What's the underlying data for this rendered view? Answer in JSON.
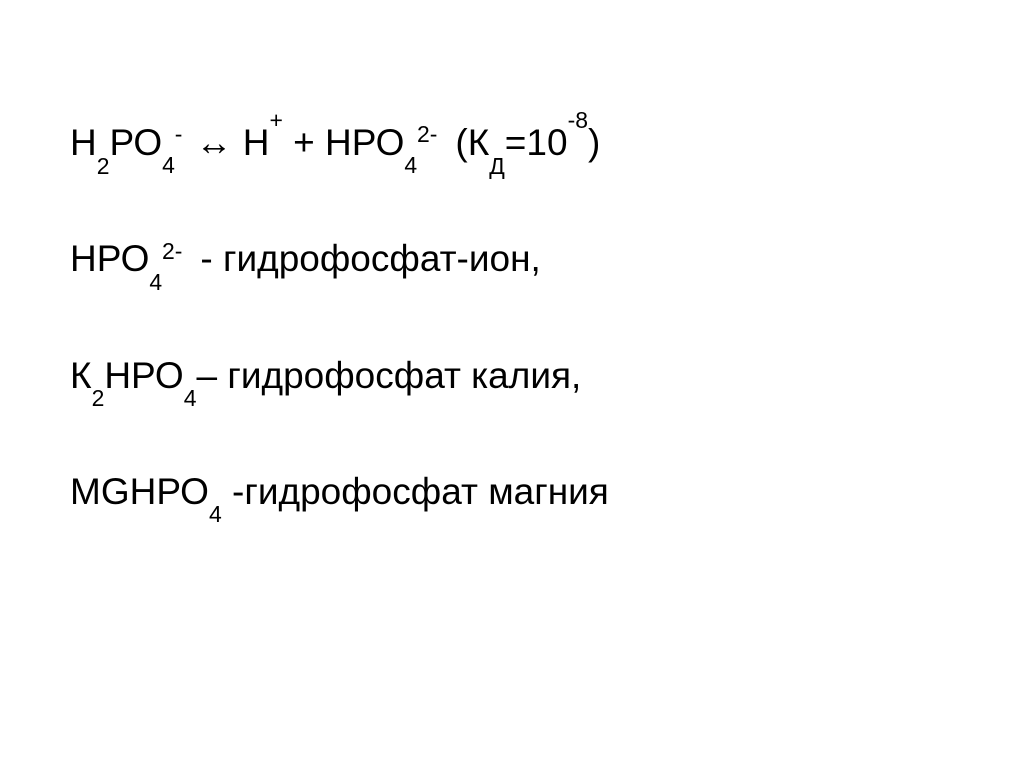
{
  "slide": {
    "background_color": "#ffffff",
    "text_color": "#000000",
    "font_family": "Arial",
    "font_size_pt": 28,
    "lines": {
      "eq": {
        "parts": {
          "a": "Н",
          "a_sub": "2",
          "b": "РО",
          "b_sub": "4",
          "b_sup": "-",
          "arrow": "↔",
          "c": " Н",
          "c_sup": "+",
          "plus": " + ",
          "d": "НРО",
          "d_sub": "4",
          "d_sup": "2-",
          "paren_open": " (К",
          "kd_sub": "Д",
          "equals": "=10",
          "exp": "-8",
          "paren_close": ")"
        }
      },
      "l2": {
        "sp": "НРО",
        "sub": "4",
        "sup": "2-",
        "rest": " - гидрофосфат-ион,"
      },
      "l3": {
        "pre": "К",
        "pre_sub": "2",
        "sp": "НРО",
        "sub": "4",
        "rest": "– гидрофосфат калия,"
      },
      "l4": {
        "sp": "MGНРО",
        "sub": "4",
        "rest": " -гидрофосфат магния"
      }
    }
  }
}
